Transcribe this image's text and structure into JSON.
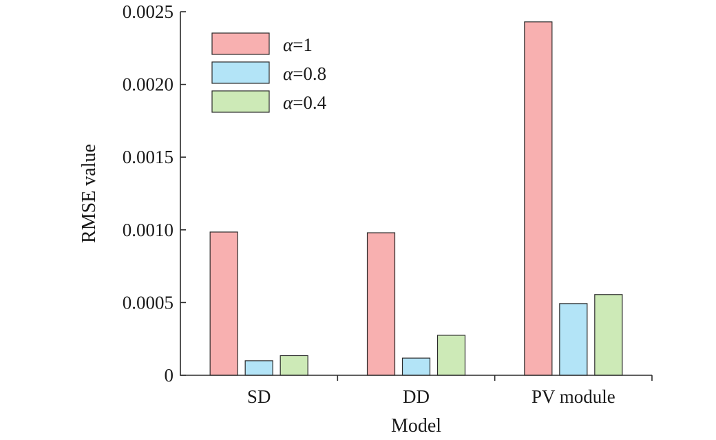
{
  "chart_data": {
    "type": "bar",
    "title": "",
    "xlabel": "Model",
    "ylabel": "RMSE value",
    "categories": [
      "SD",
      "DD",
      "PV module"
    ],
    "ylim": [
      0,
      0.0025
    ],
    "yticks": [
      "0",
      "0.0005",
      "0.0010",
      "0.0015",
      "0.0020",
      "0.0025"
    ],
    "ytick_values": [
      0,
      0.0005,
      0.001,
      0.0015,
      0.002,
      0.0025
    ],
    "grid": false,
    "legend_position": "top-left",
    "series": [
      {
        "name": "α=1",
        "symbol": "α",
        "suffix": "=1",
        "color": "#f8b0b0",
        "values": [
          0.000985,
          0.00098,
          0.00243
        ]
      },
      {
        "name": "α=0.8",
        "symbol": "α",
        "suffix": "=0.8",
        "color": "#b3e4f7",
        "values": [
          0.0001,
          0.000118,
          0.000493
        ]
      },
      {
        "name": "α=0.4",
        "symbol": "α",
        "suffix": "=0.4",
        "color": "#cdeab7",
        "values": [
          0.000135,
          0.000275,
          0.000555
        ]
      }
    ]
  }
}
